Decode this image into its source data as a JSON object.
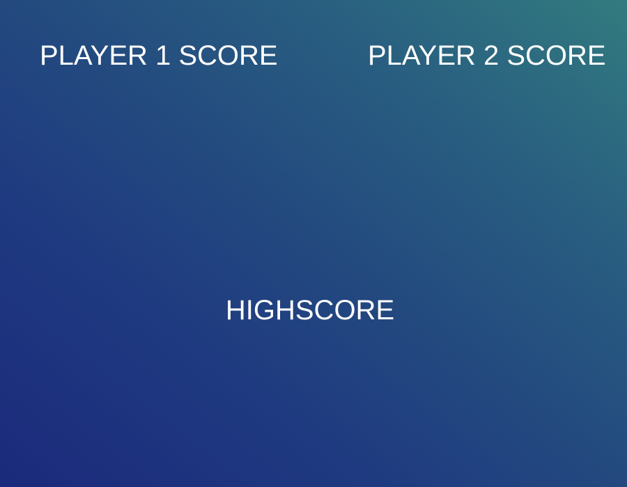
{
  "scoreboard": {
    "player1_label": "PLAYER 1 SCORE",
    "player2_label": "PLAYER 2 SCORE",
    "highscore_label": "HIGHSCORE"
  },
  "colors": {
    "gradient_bottom_left": "#1b2a7c",
    "gradient_top_right": "#327b7f",
    "text": "#ffffff"
  }
}
